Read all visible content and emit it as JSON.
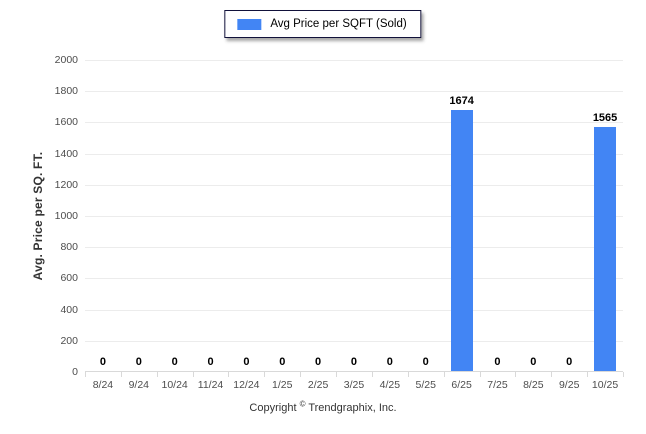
{
  "legend": {
    "label": "Avg Price per SQFT (Sold)"
  },
  "yaxis": {
    "title": "Avg. Price per SQ. FT.",
    "ticks": [
      0,
      200,
      400,
      600,
      800,
      1000,
      1200,
      1400,
      1600,
      1800,
      2000
    ]
  },
  "footer": {
    "prefix": "Copyright",
    "symbol": "©",
    "suffix": "Trendgraphix, Inc."
  },
  "colors": {
    "bar": "#4285F4",
    "gridline": "#ececec",
    "axis_line": "#d9d9d9",
    "tick_mark": "#d9d9d9",
    "legend_swatch": "#4285F4"
  },
  "chart_data": {
    "type": "bar",
    "title": "Avg Price per SQFT (Sold)",
    "xlabel": "",
    "ylabel": "Avg. Price per SQ. FT.",
    "categories": [
      "8/24",
      "9/24",
      "10/24",
      "11/24",
      "12/24",
      "1/25",
      "2/25",
      "3/25",
      "4/25",
      "5/25",
      "6/25",
      "7/25",
      "8/25",
      "9/25",
      "10/25"
    ],
    "values": [
      0,
      0,
      0,
      0,
      0,
      0,
      0,
      0,
      0,
      0,
      1674,
      0,
      0,
      0,
      1565
    ],
    "ylim": [
      0,
      2000
    ],
    "ytick_step": 200,
    "grid": true,
    "legend_position": "top-center",
    "value_labels": true
  }
}
